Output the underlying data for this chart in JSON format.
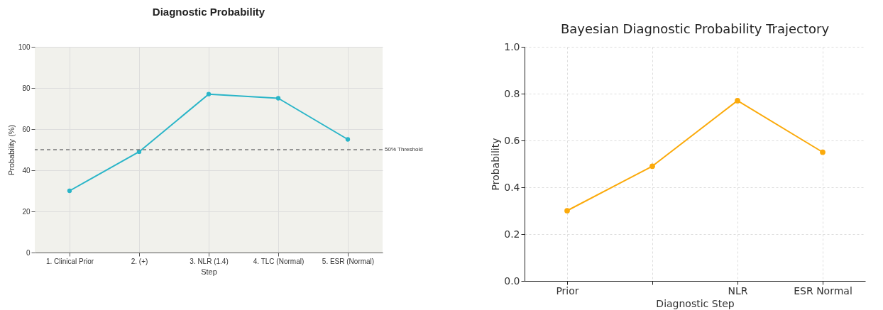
{
  "chart_data": [
    {
      "type": "line",
      "title": "Diagnostic Probability",
      "xlabel": "Step",
      "ylabel": "Probability (%)",
      "categories": [
        "1. Clinical Prior",
        "2. (+)",
        "3. NLR (1.4)",
        "4. TLC (Normal)",
        "5. ESR (Normal)"
      ],
      "series": [
        {
          "color": "#2ab5c8",
          "values": [
            30,
            49,
            77,
            75,
            55
          ]
        }
      ],
      "ylim": [
        0,
        100
      ],
      "yticks": [
        0,
        20,
        40,
        60,
        80,
        100
      ],
      "grid": true,
      "marker": "circle",
      "ref_lines": [
        {
          "axis": "y",
          "value": 50,
          "label": "50% Threshold",
          "line_style": "dashed",
          "color": "#777777"
        }
      ]
    },
    {
      "type": "line",
      "title": "Bayesian Diagnostic Probability Trajectory",
      "xlabel": "Diagnostic Step",
      "ylabel": "Probability",
      "categories": [
        "Prior",
        null,
        "NLR",
        "ESR Normal"
      ],
      "series": [
        {
          "color": "#fbaa0b",
          "values": [
            0.3,
            0.49,
            0.77,
            0.55
          ]
        }
      ],
      "ylim": [
        0,
        1.0
      ],
      "yticks": [
        {
          "value": 0,
          "label": "0.0"
        },
        {
          "value": 0.2,
          "label": "0.2"
        },
        {
          "value": 0.4,
          "label": "0.4"
        },
        {
          "value": 0.6,
          "label": "0.6"
        },
        {
          "value": 0.8,
          "label": "0.8"
        },
        {
          "value": 1.0,
          "label": "1.0"
        }
      ],
      "grid": true,
      "marker": "circle"
    }
  ]
}
